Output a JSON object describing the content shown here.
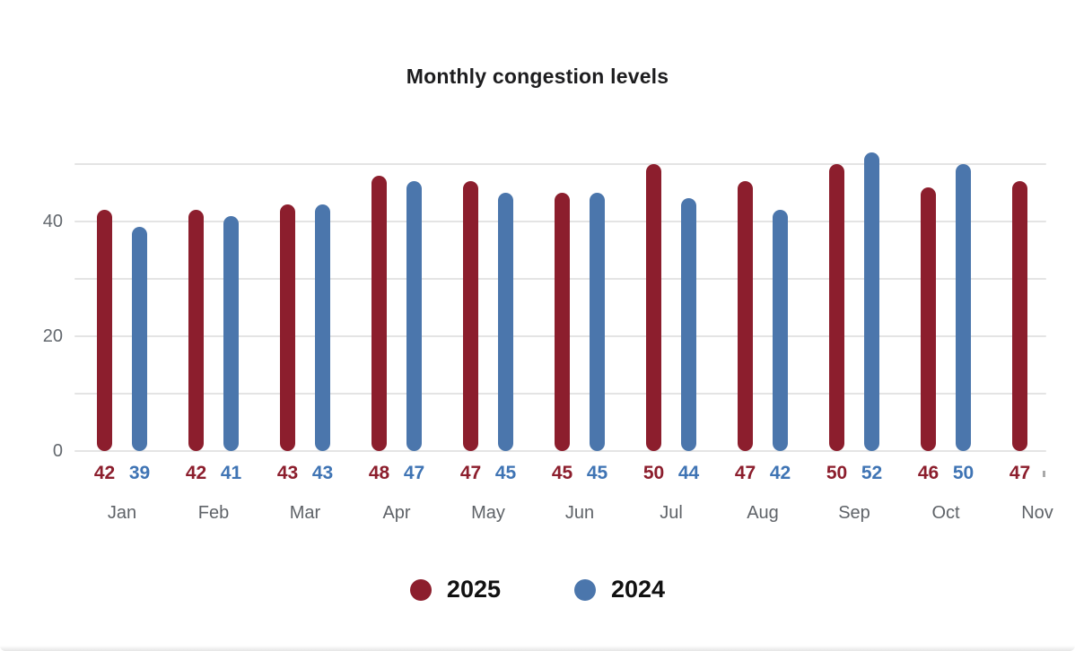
{
  "header": {
    "title": "Monthly congestion levels"
  },
  "chart_data": {
    "type": "bar",
    "title": "Monthly congestion levels",
    "categories": [
      "Jan",
      "Feb",
      "Mar",
      "Apr",
      "May",
      "Jun",
      "Jul",
      "Aug",
      "Sep",
      "Oct",
      "Nov"
    ],
    "series": [
      {
        "name": "2025",
        "color": "#8C1E2D",
        "label_color": "#8C1E2D",
        "values": [
          42,
          42,
          43,
          48,
          47,
          45,
          50,
          47,
          50,
          46,
          47
        ]
      },
      {
        "name": "2024",
        "color": "#4B76AC",
        "label_color": "#3F74B4",
        "values": [
          39,
          41,
          43,
          47,
          45,
          45,
          44,
          42,
          52,
          50,
          null
        ]
      }
    ],
    "clipped": {
      "series": "2024",
      "category": "Nov",
      "note": "bar and value label cut off at right edge of image"
    },
    "value_labels_position": "below bars",
    "gridline_values": [
      0,
      10,
      20,
      30,
      40,
      50
    ],
    "ytick_labels": [
      {
        "value": 0,
        "text": "0"
      },
      {
        "value": 20,
        "text": "20"
      },
      {
        "value": 40,
        "text": "40"
      }
    ],
    "ylim": [
      0,
      52
    ],
    "grid": true,
    "legend_position": "bottom"
  },
  "legend": {
    "items": [
      {
        "label": "2025",
        "color": "#8C1E2D"
      },
      {
        "label": "2024",
        "color": "#4B76AC"
      }
    ]
  }
}
